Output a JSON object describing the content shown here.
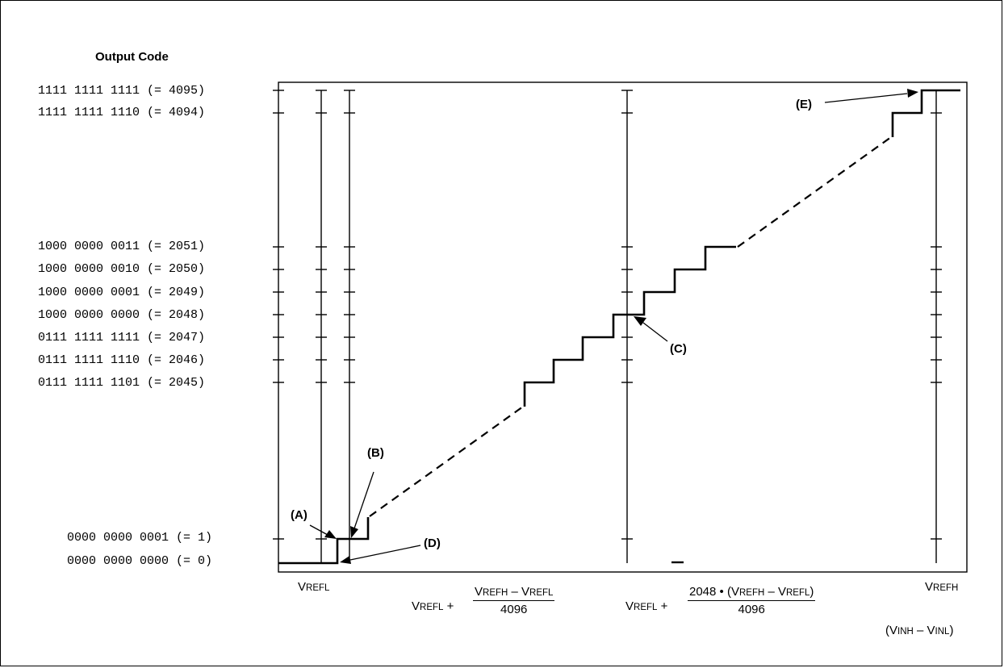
{
  "diagram": {
    "y_title": "Output Code",
    "code_labels": [
      {
        "code": "1111 1111 1111",
        "value": "(= 4095)"
      },
      {
        "code": "1111 1111 1110",
        "value": "(= 4094)"
      },
      {
        "code": "1000 0000 0011",
        "value": "(= 2051)"
      },
      {
        "code": "1000 0000 0010",
        "value": "(= 2050)"
      },
      {
        "code": "1000 0000 0001",
        "value": "(= 2049)"
      },
      {
        "code": "1000 0000 0000",
        "value": "(= 2048)"
      },
      {
        "code": "0111 1111 1111",
        "value": "(= 2047)"
      },
      {
        "code": "0111 1111 1110",
        "value": "(= 2046)"
      },
      {
        "code": "0111 1111 1101",
        "value": "(= 2045)"
      },
      {
        "code": "0000 0000 0001",
        "value": "(= 1)"
      },
      {
        "code": "0000 0000 0000",
        "value": "(= 0)"
      }
    ],
    "callouts": {
      "a": "(A)",
      "b": "(B)",
      "c": "(C)",
      "d": "(D)",
      "e": "(E)"
    },
    "x_labels": {
      "vrefl_v": "V",
      "vrefl_sub": "REFL",
      "vrefh_v": "V",
      "vrefh_sub": "REFH",
      "step1_prefix_v": "V",
      "step1_prefix_sub": "REFL",
      "step1_plus": " +",
      "step1_num_v1": "V",
      "step1_num_sub1": "REFH",
      "step1_num_minus": " – ",
      "step1_num_v2": "V",
      "step1_num_sub2": "REFL",
      "step1_den": "4096",
      "mid_prefix_v": "V",
      "mid_prefix_sub": "REFL",
      "mid_plus": " +",
      "mid_num_a": "2048 • (",
      "mid_num_v1": "V",
      "mid_num_sub1": "REFH",
      "mid_num_minus": " – ",
      "mid_num_v2": "V",
      "mid_num_sub2": "REFL",
      "mid_num_close": ")",
      "mid_den": "4096",
      "axis_open": "(",
      "axis_v1": "V",
      "axis_sub1": "INH",
      "axis_minus": " – ",
      "axis_v2": "V",
      "axis_sub2": "INL",
      "axis_close": ")"
    }
  }
}
